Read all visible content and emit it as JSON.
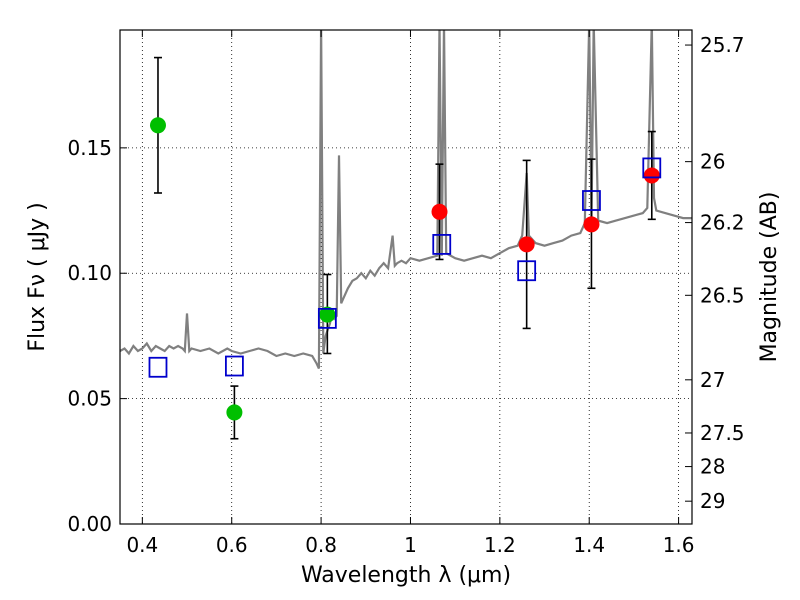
{
  "chart_data": {
    "type": "scatter",
    "xlabel": "Wavelength  λ (μm)",
    "ylabel": "Flux  Fν  ( μJy )",
    "y2label": "Magnitude (AB)",
    "xlim": [
      0.35,
      1.63
    ],
    "ylim": [
      0.0,
      0.197
    ],
    "grid": true,
    "x_ticks": [
      0.4,
      0.6,
      0.8,
      1.0,
      1.2,
      1.4,
      1.6
    ],
    "x_tick_labels": [
      "0.4",
      "0.6",
      "0.8",
      "1",
      "1.2",
      "1.4",
      "1.6"
    ],
    "y_ticks": [
      0.0,
      0.05,
      0.1,
      0.15
    ],
    "y_tick_labels": [
      "0.00",
      "0.05",
      "0.10",
      "0.15"
    ],
    "y2_ticks": [
      {
        "label": "25.7",
        "flux": 0.191
      },
      {
        "label": "26",
        "flux": 0.1445
      },
      {
        "label": "26.2",
        "flux": 0.1202
      },
      {
        "label": "26.5",
        "flux": 0.0912
      },
      {
        "label": "27",
        "flux": 0.0575
      },
      {
        "label": "27.5",
        "flux": 0.0363
      },
      {
        "label": "28",
        "flux": 0.0229
      },
      {
        "label": "29",
        "flux": 0.0091
      }
    ],
    "series": [
      {
        "marker": "circle",
        "color": "#00bf00",
        "points": [
          {
            "x": 0.435,
            "y": 0.159,
            "err_lo": 0.132,
            "err_hi": 0.186
          },
          {
            "x": 0.606,
            "y": 0.0445,
            "err_lo": 0.034,
            "err_hi": 0.055
          },
          {
            "x": 0.814,
            "y": 0.0835,
            "err_lo": 0.068,
            "err_hi": 0.0995
          }
        ]
      },
      {
        "marker": "circle",
        "color": "#ff0000",
        "points": [
          {
            "x": 1.065,
            "y": 0.1245,
            "err_lo": 0.1055,
            "err_hi": 0.1435
          },
          {
            "x": 1.26,
            "y": 0.1115,
            "err_lo": 0.078,
            "err_hi": 0.145
          },
          {
            "x": 1.405,
            "y": 0.1195,
            "err_lo": 0.094,
            "err_hi": 0.1455
          },
          {
            "x": 1.54,
            "y": 0.139,
            "err_lo": 0.1215,
            "err_hi": 0.1565
          }
        ]
      },
      {
        "marker": "square-open",
        "color": "#0000cc",
        "points": [
          {
            "x": 0.435,
            "y": 0.0625
          },
          {
            "x": 0.606,
            "y": 0.063
          },
          {
            "x": 0.814,
            "y": 0.082
          },
          {
            "x": 1.07,
            "y": 0.1115
          },
          {
            "x": 1.26,
            "y": 0.101
          },
          {
            "x": 1.405,
            "y": 0.129
          },
          {
            "x": 1.54,
            "y": 0.142
          }
        ]
      },
      {
        "marker": "line",
        "color": "#808080",
        "points": [
          [
            0.35,
            0.069
          ],
          [
            0.36,
            0.07
          ],
          [
            0.37,
            0.068
          ],
          [
            0.38,
            0.071
          ],
          [
            0.39,
            0.069
          ],
          [
            0.4,
            0.07
          ],
          [
            0.41,
            0.072
          ],
          [
            0.42,
            0.069
          ],
          [
            0.43,
            0.071
          ],
          [
            0.44,
            0.07
          ],
          [
            0.45,
            0.069
          ],
          [
            0.46,
            0.071
          ],
          [
            0.47,
            0.07
          ],
          [
            0.48,
            0.071
          ],
          [
            0.49,
            0.07
          ],
          [
            0.495,
            0.069
          ],
          [
            0.5,
            0.084
          ],
          [
            0.505,
            0.069
          ],
          [
            0.51,
            0.07
          ],
          [
            0.53,
            0.069
          ],
          [
            0.55,
            0.07
          ],
          [
            0.57,
            0.068
          ],
          [
            0.59,
            0.07
          ],
          [
            0.6,
            0.069
          ],
          [
            0.62,
            0.068
          ],
          [
            0.64,
            0.069
          ],
          [
            0.66,
            0.07
          ],
          [
            0.68,
            0.069
          ],
          [
            0.7,
            0.067
          ],
          [
            0.72,
            0.068
          ],
          [
            0.74,
            0.067
          ],
          [
            0.76,
            0.068
          ],
          [
            0.78,
            0.067
          ],
          [
            0.79,
            0.064
          ],
          [
            0.795,
            0.062
          ],
          [
            0.8,
            0.2
          ],
          [
            0.805,
            0.068
          ],
          [
            0.81,
            0.075
          ],
          [
            0.82,
            0.08
          ],
          [
            0.825,
            0.086
          ],
          [
            0.83,
            0.082
          ],
          [
            0.835,
            0.083
          ],
          [
            0.84,
            0.147
          ],
          [
            0.845,
            0.088
          ],
          [
            0.85,
            0.09
          ],
          [
            0.86,
            0.094
          ],
          [
            0.87,
            0.097
          ],
          [
            0.88,
            0.098
          ],
          [
            0.89,
            0.1
          ],
          [
            0.9,
            0.098
          ],
          [
            0.91,
            0.101
          ],
          [
            0.92,
            0.099
          ],
          [
            0.93,
            0.102
          ],
          [
            0.94,
            0.104
          ],
          [
            0.95,
            0.102
          ],
          [
            0.96,
            0.115
          ],
          [
            0.965,
            0.103
          ],
          [
            0.97,
            0.104
          ],
          [
            0.98,
            0.105
          ],
          [
            0.99,
            0.104
          ],
          [
            1.0,
            0.106
          ],
          [
            1.02,
            0.105
          ],
          [
            1.04,
            0.106
          ],
          [
            1.06,
            0.107
          ],
          [
            1.065,
            0.2
          ],
          [
            1.07,
            0.107
          ],
          [
            1.075,
            0.2
          ],
          [
            1.08,
            0.108
          ],
          [
            1.1,
            0.106
          ],
          [
            1.12,
            0.105
          ],
          [
            1.14,
            0.106
          ],
          [
            1.16,
            0.107
          ],
          [
            1.18,
            0.106
          ],
          [
            1.2,
            0.108
          ],
          [
            1.22,
            0.11
          ],
          [
            1.24,
            0.111
          ],
          [
            1.25,
            0.115
          ],
          [
            1.26,
            0.14
          ],
          [
            1.265,
            0.115
          ],
          [
            1.28,
            0.112
          ],
          [
            1.3,
            0.111
          ],
          [
            1.32,
            0.112
          ],
          [
            1.34,
            0.113
          ],
          [
            1.36,
            0.115
          ],
          [
            1.38,
            0.116
          ],
          [
            1.39,
            0.12
          ],
          [
            1.4,
            0.2
          ],
          [
            1.405,
            0.12
          ],
          [
            1.41,
            0.2
          ],
          [
            1.42,
            0.121
          ],
          [
            1.44,
            0.12
          ],
          [
            1.46,
            0.121
          ],
          [
            1.48,
            0.122
          ],
          [
            1.5,
            0.123
          ],
          [
            1.52,
            0.124
          ],
          [
            1.53,
            0.126
          ],
          [
            1.54,
            0.2
          ],
          [
            1.545,
            0.13
          ],
          [
            1.55,
            0.125
          ],
          [
            1.57,
            0.124
          ],
          [
            1.59,
            0.123
          ],
          [
            1.61,
            0.122
          ],
          [
            1.63,
            0.122
          ]
        ]
      }
    ]
  }
}
